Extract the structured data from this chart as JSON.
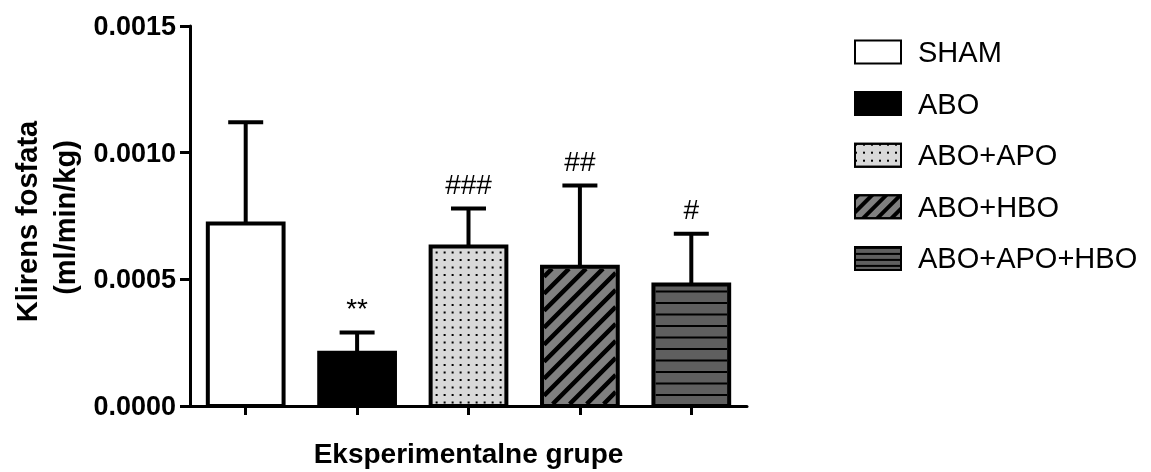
{
  "chart_data": {
    "type": "bar",
    "xlabel": "Eksperimentalne grupe",
    "ylabel": "Klirens fosfata (ml/min/kg)",
    "categories": [
      null,
      null,
      null,
      null,
      null
    ],
    "series": [
      {
        "name": "SHAM",
        "color": "#ffffff",
        "values": [
          0.00072,
          null,
          null,
          null,
          null
        ],
        "errors": [
          [
            0.00072,
            0.00112
          ],
          null,
          null,
          null,
          null
        ]
      },
      {
        "name": "ABO",
        "color": "#000000",
        "values": [
          null,
          0.00021,
          null,
          null,
          null
        ],
        "errors": [
          null,
          [
            0.00021,
            0.00029
          ],
          null,
          null,
          null
        ],
        "value_labels": [
          null,
          "**",
          null,
          null,
          null
        ]
      },
      {
        "name": "ABO+APO",
        "color": "#d9d9d9",
        "values": [
          null,
          null,
          0.00063,
          null,
          null
        ],
        "errors": [
          null,
          null,
          [
            0.00063,
            0.00078
          ],
          null,
          null
        ],
        "value_labels": [
          null,
          null,
          "###",
          null,
          null
        ]
      },
      {
        "name": "ABO+HBO",
        "color": "#808080",
        "values": [
          null,
          null,
          null,
          0.00055,
          null
        ],
        "errors": [
          null,
          null,
          null,
          [
            0.00055,
            0.00087
          ],
          null
        ],
        "value_labels": [
          null,
          null,
          null,
          "##",
          null
        ]
      },
      {
        "name": "ABO+APO+HBO",
        "color": "#5f5f5f",
        "values": [
          null,
          null,
          null,
          null,
          0.00048
        ],
        "errors": [
          null,
          null,
          null,
          null,
          [
            0.00048,
            0.00068
          ]
        ],
        "value_labels": [
          null,
          null,
          null,
          null,
          "#"
        ]
      }
    ],
    "ylim": [
      0,
      0.0015
    ],
    "yticks": [
      {
        "value": 0,
        "label": "0.0000"
      },
      0.0005,
      {
        "value": 0.001,
        "label": "0.0010"
      },
      0.0015
    ],
    "tick_labels": "y",
    "legend": "top right"
  }
}
